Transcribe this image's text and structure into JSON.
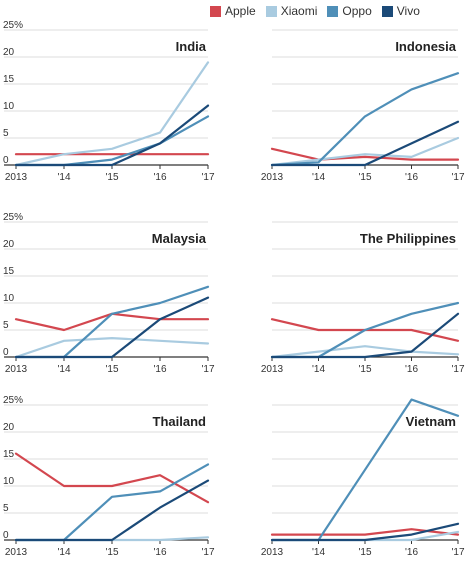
{
  "legend": [
    {
      "name": "Apple",
      "color": "#d3474f"
    },
    {
      "name": "Xiaomi",
      "color": "#a9cbe0"
    },
    {
      "name": "Oppo",
      "color": "#4f8fb8"
    },
    {
      "name": "Vivo",
      "color": "#1b4a78"
    }
  ],
  "chart_data": [
    {
      "type": "line",
      "title": "India",
      "x": [
        "2013",
        "'14",
        "'15",
        "'16",
        "'17"
      ],
      "yticks": [
        "25%",
        "20",
        "15",
        "10",
        "5",
        "0"
      ],
      "ylim": [
        0,
        25
      ],
      "grid": true,
      "legend": "top-right",
      "series": [
        {
          "name": "Apple",
          "values": [
            2,
            2,
            2,
            2,
            2
          ]
        },
        {
          "name": "Xiaomi",
          "values": [
            0,
            2,
            3,
            6,
            19
          ]
        },
        {
          "name": "Oppo",
          "values": [
            0,
            0,
            1,
            4,
            9
          ]
        },
        {
          "name": "Vivo",
          "values": [
            0,
            0,
            0,
            4,
            11
          ]
        }
      ]
    },
    {
      "type": "line",
      "title": "Indonesia",
      "x": [
        "2013",
        "'14",
        "'15",
        "'16",
        "'17"
      ],
      "yticks": [
        "25%",
        "20",
        "15",
        "10",
        "5",
        "0"
      ],
      "ylim": [
        0,
        25
      ],
      "grid": true,
      "series": [
        {
          "name": "Apple",
          "values": [
            3,
            1,
            1.5,
            1,
            1
          ]
        },
        {
          "name": "Xiaomi",
          "values": [
            0,
            1,
            2,
            1.5,
            5
          ]
        },
        {
          "name": "Oppo",
          "values": [
            0,
            0.5,
            9,
            14,
            17
          ]
        },
        {
          "name": "Vivo",
          "values": [
            0,
            0,
            0,
            4,
            8
          ]
        }
      ]
    },
    {
      "type": "line",
      "title": "Malaysia",
      "x": [
        "2013",
        "'14",
        "'15",
        "'16",
        "'17"
      ],
      "yticks": [
        "25%",
        "20",
        "15",
        "10",
        "5",
        "0"
      ],
      "ylim": [
        0,
        25
      ],
      "grid": true,
      "series": [
        {
          "name": "Apple",
          "values": [
            7,
            5,
            8,
            7,
            7
          ]
        },
        {
          "name": "Xiaomi",
          "values": [
            0,
            3,
            3.5,
            3,
            2.5
          ]
        },
        {
          "name": "Oppo",
          "values": [
            0,
            0,
            8,
            10,
            13
          ]
        },
        {
          "name": "Vivo",
          "values": [
            0,
            0,
            0,
            7,
            11
          ]
        }
      ]
    },
    {
      "type": "line",
      "title": "The Philippines",
      "x": [
        "2013",
        "'14",
        "'15",
        "'16",
        "'17"
      ],
      "yticks": [
        "25%",
        "20",
        "15",
        "10",
        "5",
        "0"
      ],
      "ylim": [
        0,
        25
      ],
      "grid": true,
      "series": [
        {
          "name": "Apple",
          "values": [
            7,
            5,
            5,
            5,
            3
          ]
        },
        {
          "name": "Xiaomi",
          "values": [
            0,
            1,
            2,
            1,
            0.5
          ]
        },
        {
          "name": "Oppo",
          "values": [
            0,
            0,
            5,
            8,
            10
          ]
        },
        {
          "name": "Vivo",
          "values": [
            0,
            0,
            0,
            1,
            8
          ]
        }
      ]
    },
    {
      "type": "line",
      "title": "Thailand",
      "x": [
        "2013",
        "'14",
        "'15",
        "'16",
        "'17"
      ],
      "yticks": [
        "25%",
        "20",
        "15",
        "10",
        "5",
        "0"
      ],
      "ylim": [
        0,
        25
      ],
      "grid": true,
      "series": [
        {
          "name": "Apple",
          "values": [
            16,
            10,
            10,
            12,
            7
          ]
        },
        {
          "name": "Xiaomi",
          "values": [
            0,
            0,
            0,
            0,
            0.5
          ]
        },
        {
          "name": "Oppo",
          "values": [
            0,
            0,
            8,
            9,
            14
          ]
        },
        {
          "name": "Vivo",
          "values": [
            0,
            0,
            0,
            6,
            11
          ]
        }
      ]
    },
    {
      "type": "line",
      "title": "Vietnam",
      "x": [
        "2013",
        "'14",
        "'15",
        "'16",
        "'17"
      ],
      "yticks": [
        "25%",
        "20",
        "15",
        "10",
        "5",
        "0"
      ],
      "ylim": [
        0,
        25
      ],
      "grid": true,
      "series": [
        {
          "name": "Apple",
          "values": [
            1,
            1,
            1,
            2,
            1
          ]
        },
        {
          "name": "Xiaomi",
          "values": [
            0,
            0,
            0,
            0,
            1.5
          ]
        },
        {
          "name": "Oppo",
          "values": [
            0,
            0,
            13,
            26,
            23
          ]
        },
        {
          "name": "Vivo",
          "values": [
            0,
            0,
            0,
            1,
            3
          ]
        }
      ]
    }
  ]
}
